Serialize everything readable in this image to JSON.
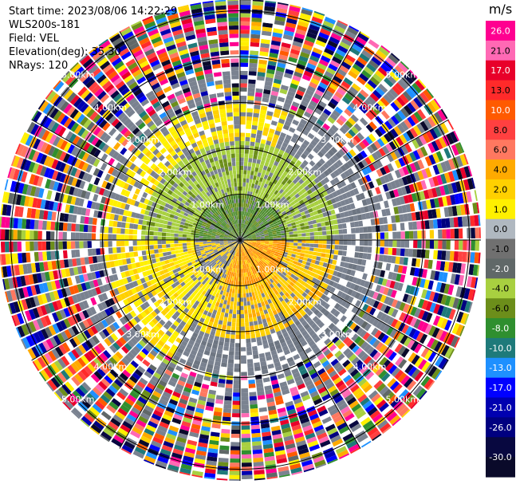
{
  "info": {
    "start_time": "Start time: 2023/08/06 14:22:29",
    "device": "WLS200s-181",
    "field": "Field: VEL",
    "elevation": "Elevation(deg): 35.30",
    "nrays": "NRays: 120"
  },
  "chart_data": {
    "type": "heatmap",
    "projection": "polar-ppi",
    "field": "VEL",
    "elevation_deg": 35.3,
    "n_rays": 120,
    "range_rings_km": [
      1.0,
      2.0,
      3.0,
      4.0,
      5.0
    ],
    "ring_labels": [
      "1.00km",
      "2.00km",
      "3.00km",
      "4.00km",
      "5.00km"
    ],
    "azimuth_lines_deg": [
      0,
      30,
      60,
      90,
      120,
      150,
      180,
      210,
      240,
      270,
      300,
      330
    ],
    "colorbar": {
      "unit": "m/s",
      "ticks": [
        "26.0",
        "21.0",
        "17.0",
        "13.0",
        "10.0",
        "8.0",
        "6.0",
        "4.0",
        "2.0",
        "1.0",
        "0.0",
        "-1.0",
        "-2.0",
        "-4.0",
        "-6.0",
        "-8.0",
        "-10.0",
        "-13.0",
        "-17.0",
        "-21.0",
        "-26.0",
        "-30.0"
      ],
      "colors": [
        "#ff0090",
        "#ff69b4",
        "#e8002a",
        "#ff2a2a",
        "#ff5a00",
        "#ff4040",
        "#ff7860",
        "#ffaa00",
        "#ffd000",
        "#fff000",
        "#b0b8c0",
        "#707070",
        "#606868",
        "#a8d040",
        "#6c8e1a",
        "#2f8f2f",
        "#1e7a7a",
        "#1e90ff",
        "#0000ff",
        "#0000b0",
        "#000080",
        "#080840",
        "#0a0a2a"
      ]
    }
  }
}
